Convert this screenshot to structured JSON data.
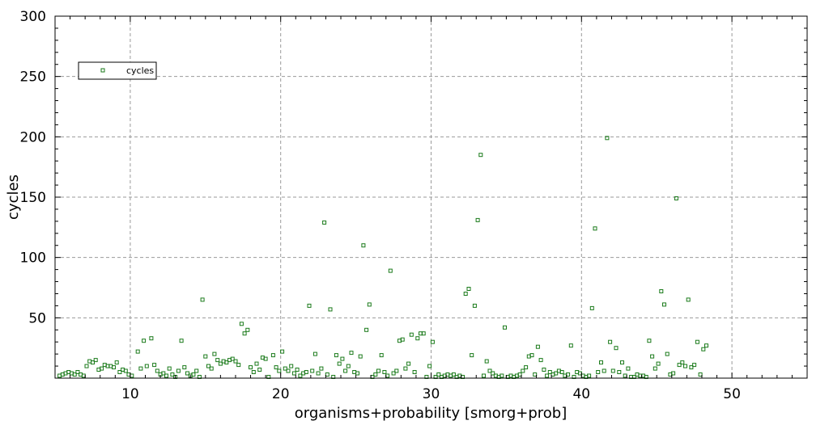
{
  "chart_data": {
    "type": "scatter",
    "xlabel": "organisms+probability [smorg+prob]",
    "ylabel": "cycles",
    "xlim": [
      5,
      55
    ],
    "ylim": [
      0,
      300
    ],
    "xticks": [
      10,
      20,
      30,
      40,
      50
    ],
    "yticks": [
      50,
      100,
      150,
      200,
      250,
      300
    ],
    "grid": true,
    "legend_position": "top-left",
    "series": [
      {
        "name": "cycles",
        "color": "#1a7a1a",
        "marker": "open-square",
        "points": [
          [
            5.3,
            2
          ],
          [
            5.5,
            3
          ],
          [
            5.7,
            4
          ],
          [
            5.9,
            5
          ],
          [
            6.1,
            4
          ],
          [
            6.3,
            3
          ],
          [
            6.5,
            5
          ],
          [
            6.7,
            3
          ],
          [
            6.9,
            2
          ],
          [
            7.1,
            10
          ],
          [
            7.3,
            14
          ],
          [
            7.5,
            13
          ],
          [
            7.7,
            15
          ],
          [
            7.9,
            7
          ],
          [
            8.1,
            8
          ],
          [
            8.3,
            11
          ],
          [
            8.5,
            10
          ],
          [
            8.7,
            10
          ],
          [
            8.9,
            9
          ],
          [
            9.1,
            13
          ],
          [
            9.3,
            5
          ],
          [
            9.5,
            7
          ],
          [
            9.7,
            6
          ],
          [
            9.9,
            3
          ],
          [
            10.1,
            2
          ],
          [
            10.5,
            22
          ],
          [
            10.7,
            8
          ],
          [
            10.9,
            31
          ],
          [
            11.1,
            10
          ],
          [
            11.4,
            33
          ],
          [
            11.6,
            11
          ],
          [
            11.8,
            6
          ],
          [
            12.0,
            3
          ],
          [
            12.2,
            4
          ],
          [
            12.4,
            2
          ],
          [
            12.6,
            8
          ],
          [
            12.8,
            3
          ],
          [
            13.0,
            1
          ],
          [
            13.2,
            6
          ],
          [
            13.4,
            31
          ],
          [
            13.6,
            9
          ],
          [
            13.8,
            4
          ],
          [
            14.0,
            2
          ],
          [
            14.2,
            3
          ],
          [
            14.4,
            6
          ],
          [
            14.6,
            1
          ],
          [
            14.8,
            65
          ],
          [
            15.0,
            18
          ],
          [
            15.2,
            10
          ],
          [
            15.4,
            8
          ],
          [
            15.6,
            20
          ],
          [
            15.8,
            15
          ],
          [
            16.0,
            12
          ],
          [
            16.2,
            14
          ],
          [
            16.4,
            13
          ],
          [
            16.6,
            15
          ],
          [
            16.8,
            16
          ],
          [
            17.0,
            14
          ],
          [
            17.2,
            11
          ],
          [
            17.4,
            45
          ],
          [
            17.6,
            37
          ],
          [
            17.8,
            40
          ],
          [
            18.0,
            9
          ],
          [
            18.2,
            5
          ],
          [
            18.4,
            12
          ],
          [
            18.6,
            7
          ],
          [
            18.8,
            17
          ],
          [
            19.0,
            16
          ],
          [
            19.2,
            1
          ],
          [
            19.5,
            19
          ],
          [
            19.7,
            9
          ],
          [
            19.9,
            6
          ],
          [
            20.1,
            22
          ],
          [
            20.3,
            8
          ],
          [
            20.5,
            6
          ],
          [
            20.7,
            10
          ],
          [
            20.9,
            4
          ],
          [
            21.1,
            7
          ],
          [
            21.3,
            2
          ],
          [
            21.5,
            4
          ],
          [
            21.7,
            5
          ],
          [
            21.9,
            60
          ],
          [
            22.1,
            6
          ],
          [
            22.3,
            20
          ],
          [
            22.5,
            4
          ],
          [
            22.7,
            8
          ],
          [
            22.9,
            129
          ],
          [
            23.1,
            3
          ],
          [
            23.3,
            57
          ],
          [
            23.5,
            1
          ],
          [
            23.7,
            19
          ],
          [
            23.9,
            12
          ],
          [
            24.1,
            16
          ],
          [
            24.3,
            6
          ],
          [
            24.5,
            10
          ],
          [
            24.7,
            21
          ],
          [
            24.9,
            5
          ],
          [
            25.1,
            4
          ],
          [
            25.3,
            18
          ],
          [
            25.5,
            110
          ],
          [
            25.7,
            40
          ],
          [
            25.9,
            61
          ],
          [
            26.1,
            1
          ],
          [
            26.3,
            3
          ],
          [
            26.5,
            6
          ],
          [
            26.7,
            19
          ],
          [
            26.9,
            5
          ],
          [
            27.1,
            2
          ],
          [
            27.3,
            89
          ],
          [
            27.5,
            4
          ],
          [
            27.7,
            6
          ],
          [
            27.9,
            31
          ],
          [
            28.1,
            32
          ],
          [
            28.3,
            8
          ],
          [
            28.5,
            12
          ],
          [
            28.7,
            36
          ],
          [
            28.9,
            5
          ],
          [
            29.1,
            33
          ],
          [
            29.3,
            37
          ],
          [
            29.5,
            37
          ],
          [
            29.7,
            1
          ],
          [
            29.9,
            10
          ],
          [
            30.1,
            30
          ],
          [
            30.3,
            1
          ],
          [
            30.5,
            3
          ],
          [
            30.7,
            1
          ],
          [
            30.9,
            2
          ],
          [
            31.1,
            3
          ],
          [
            31.3,
            2
          ],
          [
            31.5,
            3
          ],
          [
            31.7,
            1
          ],
          [
            31.9,
            2
          ],
          [
            32.1,
            1
          ],
          [
            32.3,
            70
          ],
          [
            32.5,
            74
          ],
          [
            32.7,
            19
          ],
          [
            32.9,
            60
          ],
          [
            33.1,
            131
          ],
          [
            33.3,
            185
          ],
          [
            33.5,
            2
          ],
          [
            33.7,
            14
          ],
          [
            33.9,
            6
          ],
          [
            34.1,
            4
          ],
          [
            34.3,
            2
          ],
          [
            34.5,
            1
          ],
          [
            34.7,
            2
          ],
          [
            34.9,
            42
          ],
          [
            35.1,
            1
          ],
          [
            35.3,
            2
          ],
          [
            35.5,
            1
          ],
          [
            35.7,
            2
          ],
          [
            35.9,
            3
          ],
          [
            36.1,
            6
          ],
          [
            36.3,
            9
          ],
          [
            36.5,
            18
          ],
          [
            36.7,
            19
          ],
          [
            36.9,
            3
          ],
          [
            37.1,
            26
          ],
          [
            37.3,
            15
          ],
          [
            37.5,
            7
          ],
          [
            37.7,
            2
          ],
          [
            37.9,
            5
          ],
          [
            38.1,
            3
          ],
          [
            38.3,
            4
          ],
          [
            38.5,
            6
          ],
          [
            38.7,
            5
          ],
          [
            38.9,
            2
          ],
          [
            39.1,
            3
          ],
          [
            39.3,
            27
          ],
          [
            39.5,
            1
          ],
          [
            39.7,
            5
          ],
          [
            39.9,
            4
          ],
          [
            40.1,
            2
          ],
          [
            40.3,
            1
          ],
          [
            40.5,
            2
          ],
          [
            40.7,
            58
          ],
          [
            40.9,
            124
          ],
          [
            41.1,
            5
          ],
          [
            41.3,
            13
          ],
          [
            41.5,
            6
          ],
          [
            41.7,
            199
          ],
          [
            41.9,
            30
          ],
          [
            42.1,
            6
          ],
          [
            42.3,
            25
          ],
          [
            42.5,
            5
          ],
          [
            42.7,
            13
          ],
          [
            42.9,
            2
          ],
          [
            43.1,
            8
          ],
          [
            43.3,
            1
          ],
          [
            43.5,
            1
          ],
          [
            43.7,
            3
          ],
          [
            43.9,
            2
          ],
          [
            44.1,
            2
          ],
          [
            44.3,
            1
          ],
          [
            44.5,
            31
          ],
          [
            44.7,
            18
          ],
          [
            44.9,
            8
          ],
          [
            45.1,
            12
          ],
          [
            45.3,
            72
          ],
          [
            45.5,
            61
          ],
          [
            45.7,
            20
          ],
          [
            45.9,
            3
          ],
          [
            46.1,
            4
          ],
          [
            46.3,
            149
          ],
          [
            46.5,
            11
          ],
          [
            46.7,
            13
          ],
          [
            46.9,
            10
          ],
          [
            47.1,
            65
          ],
          [
            47.3,
            9
          ],
          [
            47.5,
            11
          ],
          [
            47.7,
            30
          ],
          [
            47.9,
            3
          ],
          [
            48.1,
            24
          ],
          [
            48.3,
            27
          ]
        ]
      }
    ]
  }
}
